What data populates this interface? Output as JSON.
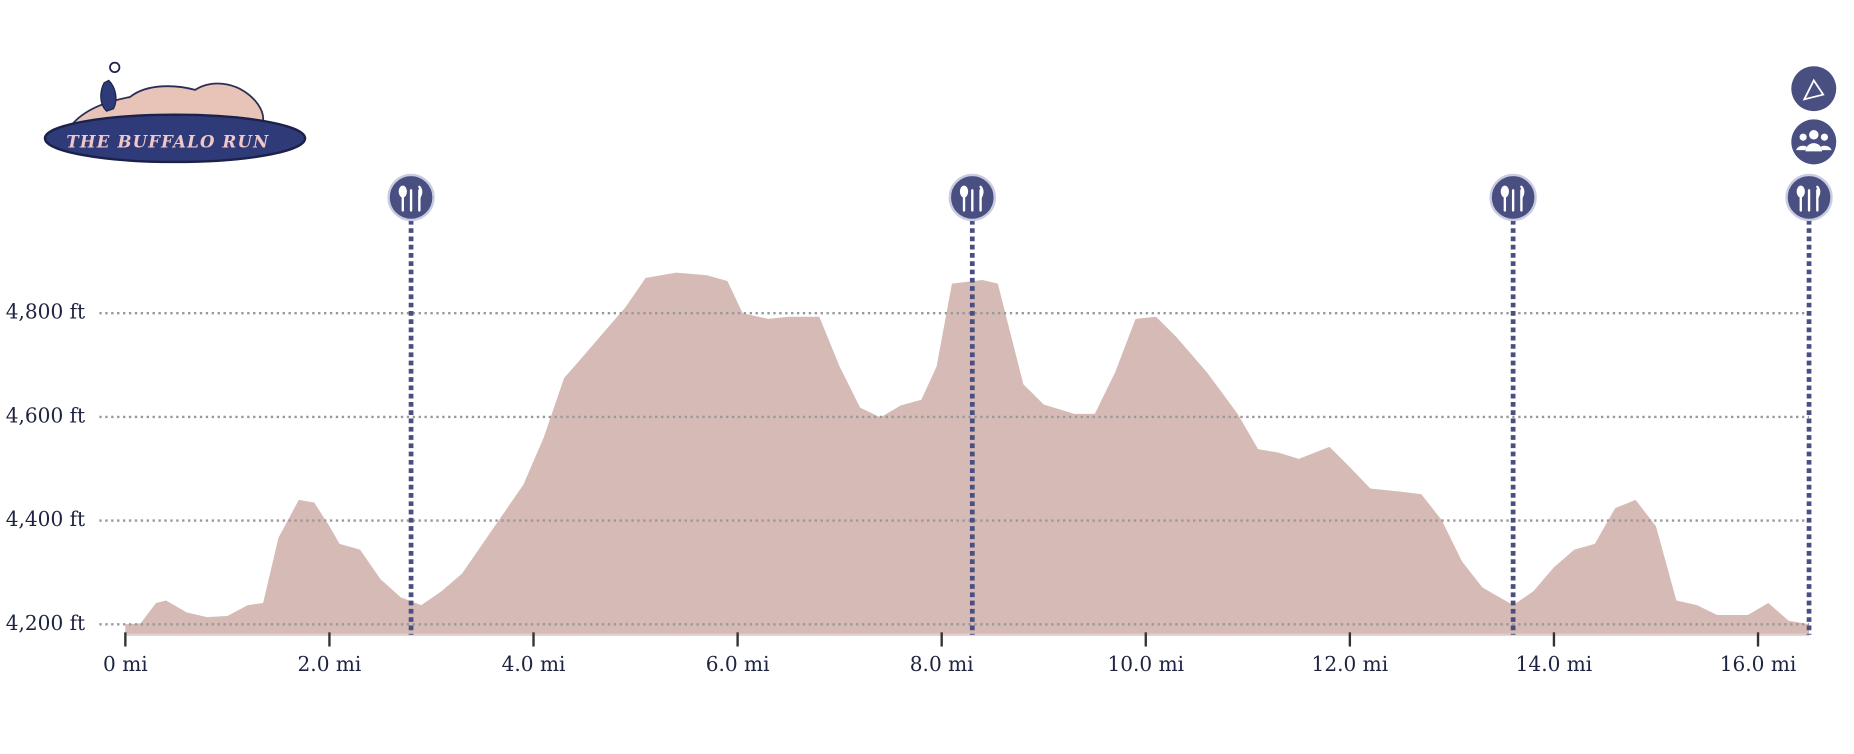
{
  "logo_text": "THE BUFFALO RUN",
  "chart_data": {
    "type": "area",
    "x": [
      0,
      0.15,
      0.3,
      0.4,
      0.6,
      0.8,
      1.0,
      1.2,
      1.35,
      1.5,
      1.7,
      1.85,
      2.0,
      2.1,
      2.3,
      2.5,
      2.7,
      2.9,
      3.1,
      3.3,
      3.5,
      3.7,
      3.9,
      4.1,
      4.3,
      4.5,
      4.7,
      4.9,
      5.1,
      5.4,
      5.7,
      5.9,
      6.05,
      6.3,
      6.5,
      6.8,
      7.0,
      7.2,
      7.4,
      7.6,
      7.8,
      7.95,
      8.1,
      8.4,
      8.55,
      8.8,
      9.0,
      9.3,
      9.5,
      9.7,
      9.9,
      10.1,
      10.3,
      10.6,
      10.9,
      11.1,
      11.3,
      11.5,
      11.8,
      12.0,
      12.2,
      12.4,
      12.7,
      12.9,
      13.1,
      13.3,
      13.6,
      13.8,
      14.0,
      14.2,
      14.4,
      14.6,
      14.8,
      15.0,
      15.2,
      15.4,
      15.6,
      15.9,
      16.1,
      16.3,
      16.5
    ],
    "values": [
      4200,
      4202,
      4241,
      4246,
      4223,
      4214,
      4216,
      4237,
      4241,
      4367,
      4440,
      4435,
      4389,
      4355,
      4344,
      4287,
      4252,
      4237,
      4264,
      4298,
      4355,
      4412,
      4469,
      4560,
      4675,
      4720,
      4766,
      4811,
      4868,
      4878,
      4873,
      4862,
      4800,
      4789,
      4793,
      4793,
      4697,
      4618,
      4599,
      4622,
      4633,
      4697,
      4857,
      4864,
      4857,
      4663,
      4624,
      4606,
      4606,
      4686,
      4789,
      4793,
      4754,
      4686,
      4606,
      4538,
      4531,
      4519,
      4542,
      4503,
      4462,
      4458,
      4451,
      4401,
      4321,
      4271,
      4237,
      4264,
      4310,
      4344,
      4355,
      4424,
      4440,
      4389,
      4246,
      4237,
      4218,
      4218,
      4241,
      4207,
      4200
    ],
    "color": "#d6bab6",
    "xlim": [
      0,
      16.5
    ],
    "ylim": [
      4180,
      4900
    ],
    "xticks": [
      {
        "value": 0,
        "label": "0 mi"
      },
      {
        "value": 2,
        "label": "2.0 mi"
      },
      {
        "value": 4,
        "label": "4.0 mi"
      },
      {
        "value": 6,
        "label": "6.0 mi"
      },
      {
        "value": 8,
        "label": "8.0 mi"
      },
      {
        "value": 10,
        "label": "10.0 mi"
      },
      {
        "value": 12,
        "label": "12.0 mi"
      },
      {
        "value": 14,
        "label": "14.0 mi"
      },
      {
        "value": 16,
        "label": "16.0 mi"
      }
    ],
    "yticks": [
      {
        "value": 4200,
        "label": "4,200 ft"
      },
      {
        "value": 4400,
        "label": "4,400 ft"
      },
      {
        "value": 4600,
        "label": "4,600 ft"
      },
      {
        "value": 4800,
        "label": "4,800 ft"
      }
    ],
    "grid": true,
    "aid_stations": [
      2.8,
      8.3,
      13.6,
      16.5
    ],
    "marker_color": "#4a4f82"
  }
}
